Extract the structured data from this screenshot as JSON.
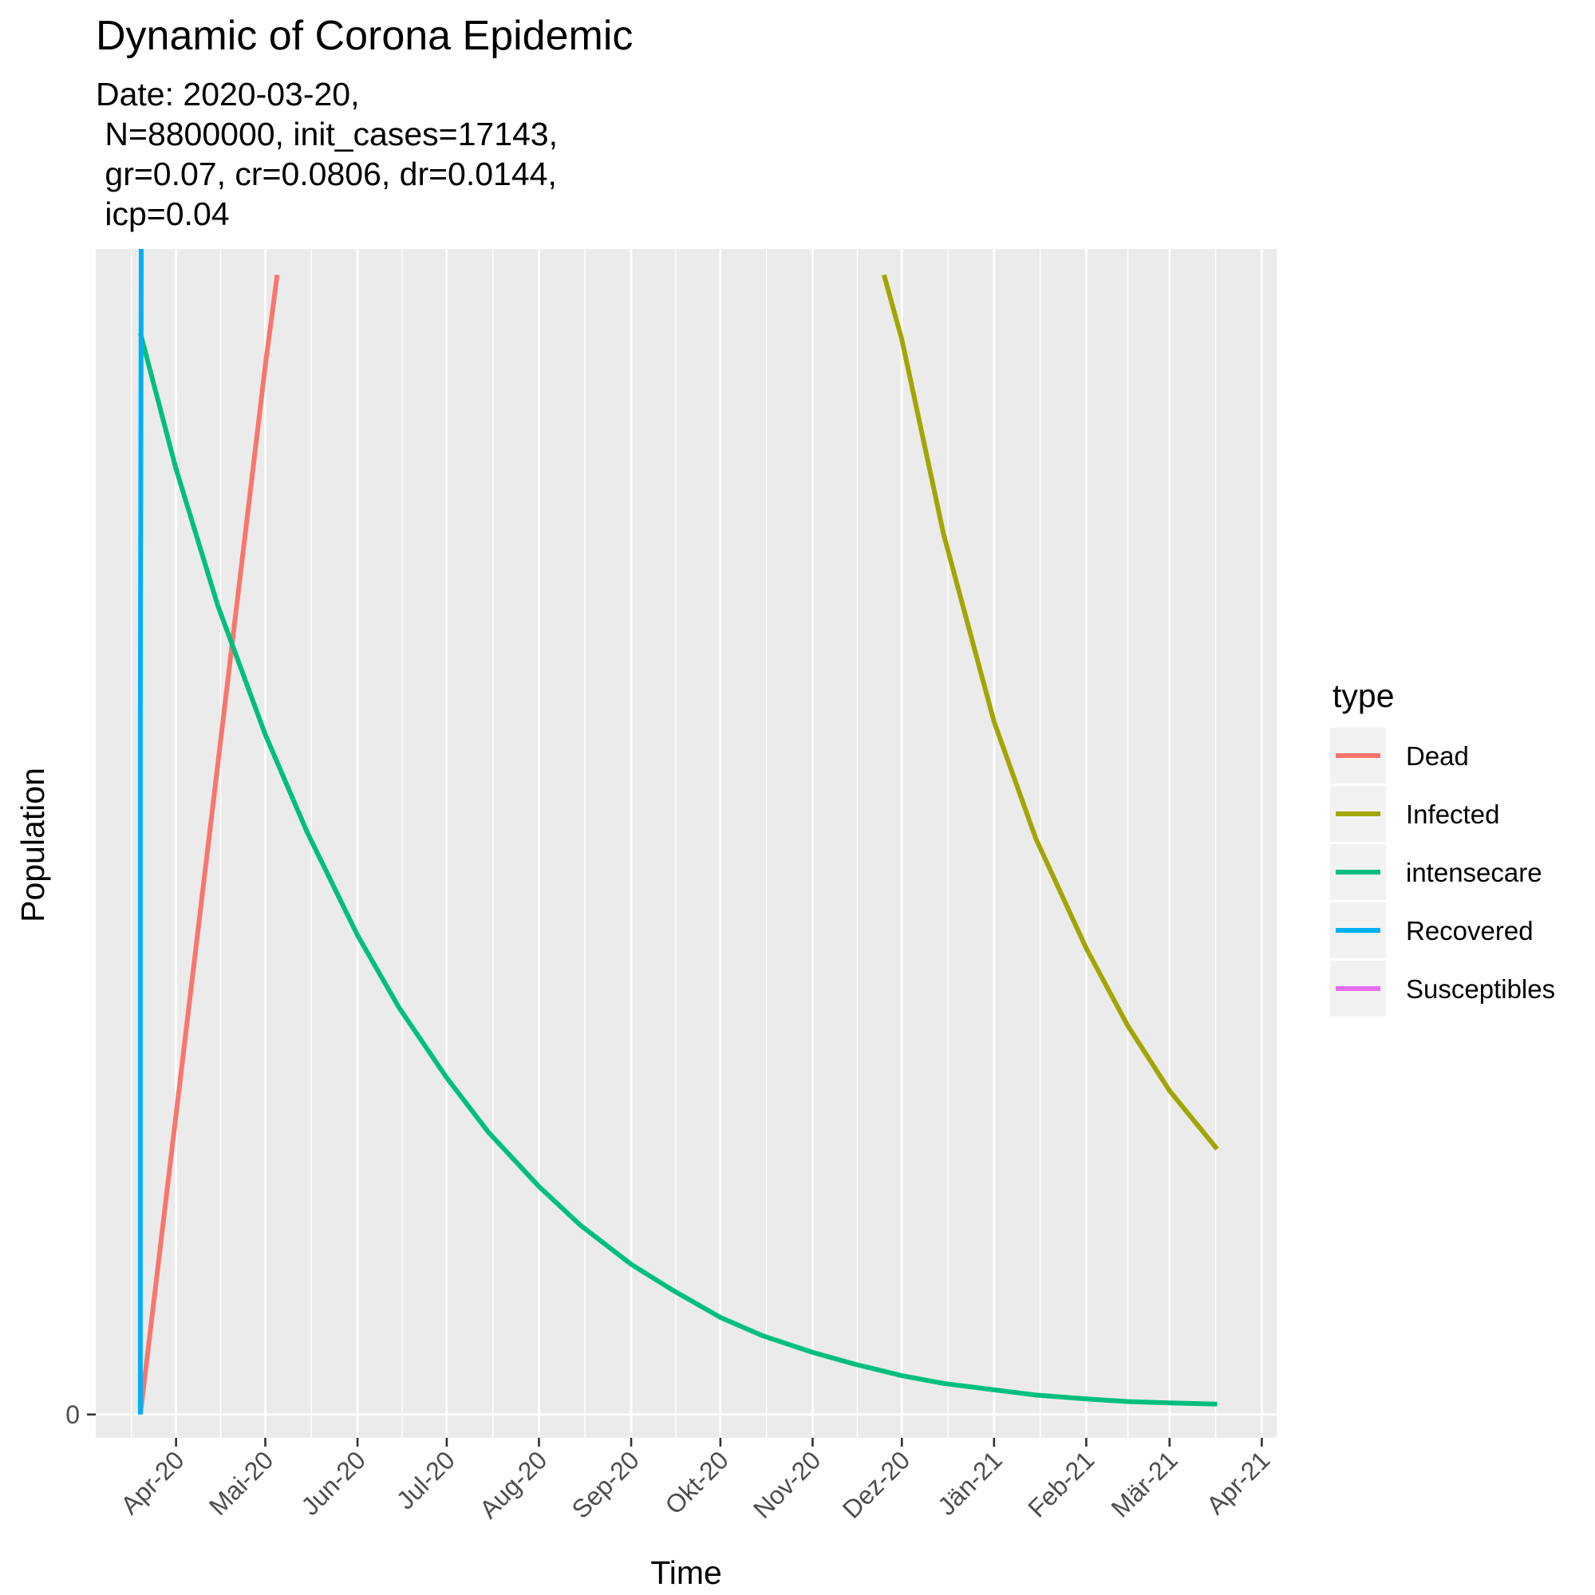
{
  "chart_data": {
    "type": "line",
    "title": "Dynamic of Corona Epidemic",
    "subtitle_lines": [
      "Date: 2020-03-20,",
      " N=8800000, init_cases=17143,",
      " gr=0.07, cr=0.0806, dr=0.0144,",
      " icp=0.04"
    ],
    "xlabel": "Time",
    "ylabel": "Population",
    "x_ticks": [
      {
        "label": "Apr-20",
        "date": "2020-04-01"
      },
      {
        "label": "Mai-20",
        "date": "2020-05-01"
      },
      {
        "label": "Jun-20",
        "date": "2020-06-01"
      },
      {
        "label": "Jul-20",
        "date": "2020-07-01"
      },
      {
        "label": "Aug-20",
        "date": "2020-08-01"
      },
      {
        "label": "Sep-20",
        "date": "2020-09-01"
      },
      {
        "label": "Okt-20",
        "date": "2020-10-01"
      },
      {
        "label": "Nov-20",
        "date": "2020-11-01"
      },
      {
        "label": "Dez-20",
        "date": "2020-12-01"
      },
      {
        "label": "Jän-21",
        "date": "2021-01-01"
      },
      {
        "label": "Feb-21",
        "date": "2021-02-01"
      },
      {
        "label": "Mär-21",
        "date": "2021-03-01"
      },
      {
        "label": "Apr-21",
        "date": "2021-04-01"
      }
    ],
    "x_range": [
      "2020-03-05",
      "2021-04-06"
    ],
    "y_ticks": [
      {
        "label": "0",
        "value": 0
      }
    ],
    "y_range": [
      -18,
      900
    ],
    "grid": true,
    "legend": {
      "title": "type",
      "position": "right"
    },
    "series": [
      {
        "name": "Dead",
        "color": "#F8766D",
        "points": [
          [
            "2020-03-20",
            0
          ],
          [
            "2020-03-27",
            135
          ],
          [
            "2020-04-03",
            270
          ],
          [
            "2020-04-10",
            405
          ],
          [
            "2020-04-17",
            540
          ],
          [
            "2020-04-24",
            675
          ],
          [
            "2020-05-01",
            810
          ],
          [
            "2020-05-05",
            880
          ]
        ]
      },
      {
        "name": "Infected",
        "color": "#A3A500",
        "points": [
          [
            "2020-11-25",
            880
          ],
          [
            "2020-12-01",
            830
          ],
          [
            "2020-12-15",
            680
          ],
          [
            "2021-01-01",
            535
          ],
          [
            "2021-01-15",
            445
          ],
          [
            "2021-02-01",
            360
          ],
          [
            "2021-02-15",
            300
          ],
          [
            "2021-03-01",
            250
          ],
          [
            "2021-03-17",
            205
          ]
        ]
      },
      {
        "name": "intensecare",
        "color": "#00BF7D",
        "points": [
          [
            "2020-03-20",
            835
          ],
          [
            "2020-04-01",
            730
          ],
          [
            "2020-04-15",
            625
          ],
          [
            "2020-05-01",
            525
          ],
          [
            "2020-05-15",
            450
          ],
          [
            "2020-06-01",
            370
          ],
          [
            "2020-06-15",
            314
          ],
          [
            "2020-07-01",
            260
          ],
          [
            "2020-07-15",
            218
          ],
          [
            "2020-08-01",
            176
          ],
          [
            "2020-08-15",
            146
          ],
          [
            "2020-09-01",
            116
          ],
          [
            "2020-09-15",
            96
          ],
          [
            "2020-10-01",
            75
          ],
          [
            "2020-10-15",
            61
          ],
          [
            "2020-11-01",
            48
          ],
          [
            "2020-11-15",
            39
          ],
          [
            "2020-12-01",
            30
          ],
          [
            "2020-12-15",
            24
          ],
          [
            "2021-01-01",
            19
          ],
          [
            "2021-01-15",
            15
          ],
          [
            "2021-02-01",
            12
          ],
          [
            "2021-02-15",
            10
          ],
          [
            "2021-03-01",
            9
          ],
          [
            "2021-03-17",
            8
          ]
        ]
      },
      {
        "name": "Recovered",
        "color": "#00B0F6",
        "points": [
          [
            "2020-03-20",
            0
          ],
          [
            "2020-03-20",
            535
          ],
          [
            "2020-03-20.3",
            900
          ]
        ]
      },
      {
        "name": "Susceptibles",
        "color": "#E76BF3",
        "points": []
      }
    ]
  }
}
